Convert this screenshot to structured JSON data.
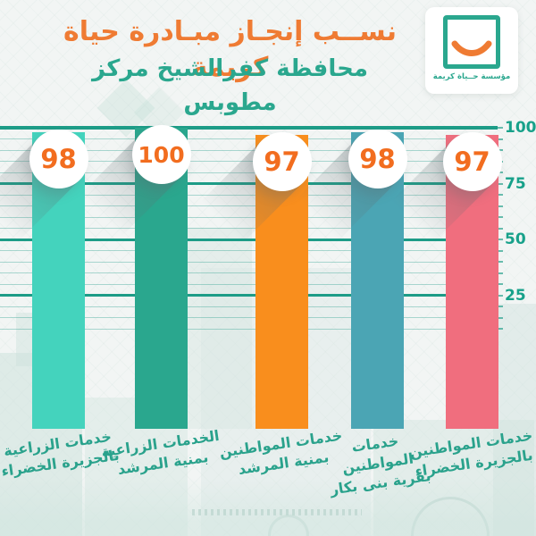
{
  "meta": {
    "language": "ar",
    "direction": "rtl"
  },
  "header": {
    "title_line1": "نســب إنجـاز مبـادرة حياة كريمة",
    "title_line2": "محافظة كفرالشيخ مركز مطوبس"
  },
  "logo": {
    "name": "haya-karima-foundation-logo",
    "caption": "مؤسسة حــياة كريمة",
    "frame_color": "#2aa78e",
    "smile_color": "#ef7b33"
  },
  "colors": {
    "title_orange": "#ef7b33",
    "title_teal": "#2aa78e",
    "badge_number_orange": "#f26d1f",
    "grid_major_teal": "#1d9c87",
    "axis_label_teal": "#17a18a",
    "category_label_teal": "#2aa28c",
    "background": "#f2f5f4"
  },
  "chart_data": {
    "type": "bar",
    "title": "نسب إنجاز مبادرة حياة كريمة - محافظة كفرالشيخ مركز مطوبس",
    "categories_order": "left-to-right",
    "categories": [
      "خدمات الزراعية بالجزيرة الخضراء",
      "الخدمات الزراعية بمنية المرشد",
      "خدمات المواطنين بمنية المرشد",
      "خدمات المواطنين بقرية بنى بكار",
      "خدمات المواطنين بالجزيرة الخضراء"
    ],
    "values": [
      98,
      100,
      97,
      98,
      97
    ],
    "bar_colors": [
      "#44d3bd",
      "#2aa78e",
      "#f98e1d",
      "#4ba5b4",
      "#f06e7e"
    ],
    "xlabel": "",
    "ylabel": "",
    "ylim": [
      0,
      100
    ],
    "yticks": [
      100,
      75,
      50,
      25
    ],
    "minor_tick_step": 5,
    "grid": true,
    "axis_side": "right",
    "value_badges": true
  },
  "bars": [
    {
      "value": 98,
      "label_lines": [
        "خدمات الزراعية",
        "بالجزيرة الخضراء"
      ],
      "color": "#44d3bd"
    },
    {
      "value": 100,
      "label_lines": [
        "الخدمات الزراعية",
        "بمنية المرشد"
      ],
      "color": "#2aa78e"
    },
    {
      "value": 97,
      "label_lines": [
        "خدمات المواطنين",
        "بمنية المرشد"
      ],
      "color": "#f98e1d"
    },
    {
      "value": 98,
      "label_lines": [
        "خدمات",
        "المواطنين",
        "بقرية بنى بكار"
      ],
      "color": "#4ba5b4"
    },
    {
      "value": 97,
      "label_lines": [
        "خدمات المواطنين",
        "بالجزيرة الخضراء"
      ],
      "color": "#f06e7e"
    }
  ],
  "y_axis": {
    "labels": [
      "100",
      "75",
      "50",
      "25"
    ]
  }
}
